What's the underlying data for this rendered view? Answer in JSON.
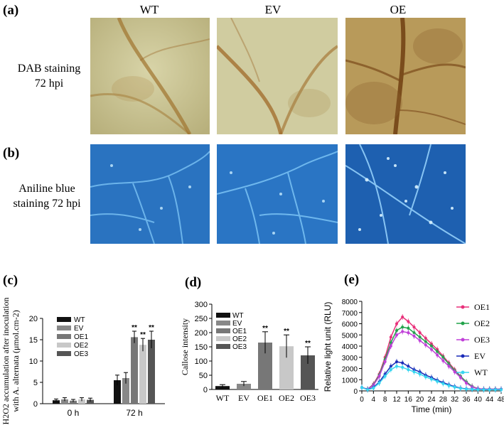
{
  "panels": {
    "a": "(a)",
    "b": "(b)",
    "c": "(c)",
    "d": "(d)",
    "e": "(e)"
  },
  "columns": [
    "WT",
    "EV",
    "OE"
  ],
  "row_a_label": [
    "DAB staining",
    "72 hpi"
  ],
  "row_b_label": [
    "Aniline blue",
    "staining 72 hpi"
  ],
  "colors": {
    "dab_bg": "#c9c49a",
    "dab_vein": "#9a6a2a",
    "aniline_bg": "#1f6fc8",
    "aniline_vein": "#8fd0ff",
    "OE1": "#e8307a",
    "OE2": "#21a34a",
    "OE3": "#c040d8",
    "EV": "#1a2ab8",
    "WT": "#38d6f0"
  },
  "chart_data": [
    {
      "id": "c",
      "type": "bar",
      "ylabel_lines": [
        "H2O2 accumulation after inoculation",
        "with A. alternata (μmol.cm-2)"
      ],
      "categories": [
        "0 h",
        "72 h"
      ],
      "ylim": [
        0,
        20
      ],
      "yticks": [
        0,
        5,
        10,
        15,
        20
      ],
      "series": [
        {
          "name": "WT",
          "values": [
            0.8,
            5.5
          ],
          "err": [
            0.3,
            1.2
          ],
          "color": "#111111",
          "sig": [
            "",
            ""
          ]
        },
        {
          "name": "EV",
          "values": [
            1.0,
            6.0
          ],
          "err": [
            0.4,
            1.3
          ],
          "color": "#888888",
          "sig": [
            "",
            ""
          ]
        },
        {
          "name": "OE1",
          "values": [
            0.7,
            15.6
          ],
          "err": [
            0.3,
            1.4
          ],
          "color": "#777777",
          "sig": [
            "",
            "**"
          ]
        },
        {
          "name": "OE2",
          "values": [
            1.0,
            13.8
          ],
          "err": [
            0.4,
            1.5
          ],
          "color": "#c8c8c8",
          "sig": [
            "",
            "**"
          ]
        },
        {
          "name": "OE3",
          "values": [
            0.9,
            15.0
          ],
          "err": [
            0.4,
            2.0
          ],
          "color": "#555555",
          "sig": [
            "",
            "**"
          ]
        }
      ],
      "grid": false,
      "legend": "top-left"
    },
    {
      "id": "d",
      "type": "bar",
      "ylabel": "Callose intensity",
      "categories": [
        "WT",
        "EV",
        "OE1",
        "OE2",
        "OE3"
      ],
      "values": [
        12,
        20,
        165,
        152,
        120
      ],
      "err": [
        5,
        8,
        38,
        40,
        30
      ],
      "sig": [
        "",
        "",
        "**",
        "**",
        "**"
      ],
      "colors": [
        "#111111",
        "#888888",
        "#777777",
        "#c8c8c8",
        "#555555"
      ],
      "legend_entries": [
        "WT",
        "EV",
        "OE1",
        "OE2",
        "OE3"
      ],
      "ylim": [
        0,
        300
      ],
      "yticks": [
        0,
        50,
        100,
        150,
        200,
        250,
        300
      ],
      "grid": false,
      "legend": "top-left"
    },
    {
      "id": "e",
      "type": "line",
      "xlabel": "Time (min)",
      "ylabel": "Relative light unit (RLU)",
      "xlim": [
        0,
        48
      ],
      "xticks": [
        0,
        4,
        8,
        12,
        16,
        20,
        24,
        28,
        32,
        36,
        40,
        44,
        48
      ],
      "ylim": [
        0,
        8000
      ],
      "yticks": [
        0,
        1000,
        2000,
        3000,
        4000,
        5000,
        6000,
        7000,
        8000
      ],
      "x": [
        0,
        2,
        4,
        6,
        8,
        10,
        12,
        14,
        16,
        18,
        20,
        22,
        24,
        26,
        28,
        30,
        32,
        34,
        36,
        38,
        40,
        42,
        44,
        46,
        48
      ],
      "series": [
        {
          "name": "OE1",
          "color": "#e8307a",
          "values": [
            300,
            150,
            600,
            1500,
            3000,
            4800,
            6000,
            6600,
            6200,
            5700,
            5200,
            4700,
            4200,
            3700,
            3100,
            2500,
            1900,
            1300,
            800,
            400,
            200,
            150,
            150,
            150,
            150
          ]
        },
        {
          "name": "OE2",
          "color": "#21a34a",
          "values": [
            300,
            150,
            550,
            1400,
            2800,
            4300,
            5400,
            5700,
            5600,
            5200,
            4800,
            4400,
            4000,
            3500,
            3000,
            2400,
            1800,
            1300,
            800,
            400,
            200,
            150,
            150,
            150,
            150
          ]
        },
        {
          "name": "OE3",
          "color": "#c040d8",
          "values": [
            300,
            150,
            500,
            1300,
            2600,
            4000,
            5000,
            5300,
            5200,
            4900,
            4500,
            4100,
            3700,
            3200,
            2700,
            2200,
            1700,
            1200,
            700,
            350,
            200,
            150,
            150,
            150,
            150
          ]
        },
        {
          "name": "EV",
          "color": "#1a2ab8",
          "values": [
            300,
            120,
            300,
            800,
            1500,
            2200,
            2600,
            2500,
            2200,
            1900,
            1700,
            1400,
            1200,
            950,
            750,
            550,
            380,
            250,
            180,
            150,
            130,
            120,
            120,
            120,
            120
          ]
        },
        {
          "name": "WT",
          "color": "#38d6f0",
          "values": [
            300,
            100,
            250,
            700,
            1300,
            1900,
            2200,
            2100,
            1900,
            1700,
            1500,
            1250,
            1050,
            850,
            650,
            480,
            330,
            220,
            160,
            130,
            110,
            100,
            100,
            100,
            100
          ]
        }
      ],
      "grid": false,
      "legend": "top-right"
    }
  ]
}
